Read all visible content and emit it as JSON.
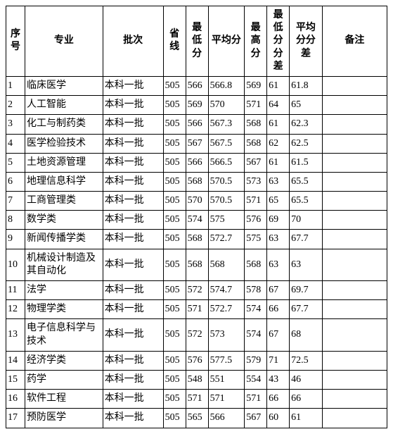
{
  "table": {
    "columns": [
      {
        "key": "seq",
        "label": "序号"
      },
      {
        "key": "major",
        "label": "专业"
      },
      {
        "key": "batch",
        "label": "批次"
      },
      {
        "key": "provline",
        "label": "省线"
      },
      {
        "key": "minscore",
        "label": "最低分"
      },
      {
        "key": "avgscore",
        "label": "平均分"
      },
      {
        "key": "maxscore",
        "label": "最高分"
      },
      {
        "key": "mindiff",
        "label": "最低分分差"
      },
      {
        "key": "avgdiff",
        "label": "平均分分差"
      },
      {
        "key": "remark",
        "label": "备注"
      }
    ],
    "rows": [
      {
        "seq": "1",
        "major": "临床医学",
        "batch": "本科一批",
        "provline": "505",
        "minscore": "566",
        "avgscore": "566.8",
        "maxscore": "569",
        "mindiff": "61",
        "avgdiff": "61.8",
        "remark": ""
      },
      {
        "seq": "2",
        "major": "人工智能",
        "batch": "本科一批",
        "provline": "505",
        "minscore": "569",
        "avgscore": "570",
        "maxscore": "571",
        "mindiff": "64",
        "avgdiff": "65",
        "remark": ""
      },
      {
        "seq": "3",
        "major": "化工与制药类",
        "batch": "本科一批",
        "provline": "505",
        "minscore": "566",
        "avgscore": "567.3",
        "maxscore": "568",
        "mindiff": "61",
        "avgdiff": "62.3",
        "remark": ""
      },
      {
        "seq": "4",
        "major": "医学检验技术",
        "batch": "本科一批",
        "provline": "505",
        "minscore": "567",
        "avgscore": "567.5",
        "maxscore": "568",
        "mindiff": "62",
        "avgdiff": "62.5",
        "remark": ""
      },
      {
        "seq": "5",
        "major": "土地资源管理",
        "batch": "本科一批",
        "provline": "505",
        "minscore": "566",
        "avgscore": "566.5",
        "maxscore": "567",
        "mindiff": "61",
        "avgdiff": "61.5",
        "remark": ""
      },
      {
        "seq": "6",
        "major": "地理信息科学",
        "batch": "本科一批",
        "provline": "505",
        "minscore": "568",
        "avgscore": "570.5",
        "maxscore": "573",
        "mindiff": "63",
        "avgdiff": "65.5",
        "remark": ""
      },
      {
        "seq": "7",
        "major": "工商管理类",
        "batch": "本科一批",
        "provline": "505",
        "minscore": "570",
        "avgscore": "570.5",
        "maxscore": "571",
        "mindiff": "65",
        "avgdiff": "65.5",
        "remark": ""
      },
      {
        "seq": "8",
        "major": "数学类",
        "batch": "本科一批",
        "provline": "505",
        "minscore": "574",
        "avgscore": "575",
        "maxscore": "576",
        "mindiff": "69",
        "avgdiff": "70",
        "remark": ""
      },
      {
        "seq": "9",
        "major": "新闻传播学类",
        "batch": "本科一批",
        "provline": "505",
        "minscore": "568",
        "avgscore": "572.7",
        "maxscore": "575",
        "mindiff": "63",
        "avgdiff": "67.7",
        "remark": ""
      },
      {
        "seq": "10",
        "major": "机械设计制造及其自动化",
        "batch": "本科一批",
        "provline": "505",
        "minscore": "568",
        "avgscore": "568",
        "maxscore": "568",
        "mindiff": "63",
        "avgdiff": "63",
        "remark": ""
      },
      {
        "seq": "11",
        "major": "法学",
        "batch": "本科一批",
        "provline": "505",
        "minscore": "572",
        "avgscore": "574.7",
        "maxscore": "578",
        "mindiff": "67",
        "avgdiff": "69.7",
        "remark": ""
      },
      {
        "seq": "12",
        "major": "物理学类",
        "batch": "本科一批",
        "provline": "505",
        "minscore": "571",
        "avgscore": "572.7",
        "maxscore": "574",
        "mindiff": "66",
        "avgdiff": "67.7",
        "remark": ""
      },
      {
        "seq": "13",
        "major": "电子信息科学与技术",
        "batch": "本科一批",
        "provline": "505",
        "minscore": "572",
        "avgscore": "573",
        "maxscore": "574",
        "mindiff": "67",
        "avgdiff": "68",
        "remark": ""
      },
      {
        "seq": "14",
        "major": "经济学类",
        "batch": "本科一批",
        "provline": "505",
        "minscore": "576",
        "avgscore": "577.5",
        "maxscore": "579",
        "mindiff": "71",
        "avgdiff": "72.5",
        "remark": ""
      },
      {
        "seq": "15",
        "major": "药学",
        "batch": "本科一批",
        "provline": "505",
        "minscore": "548",
        "avgscore": "551",
        "maxscore": "554",
        "mindiff": "43",
        "avgdiff": "46",
        "remark": ""
      },
      {
        "seq": "16",
        "major": "软件工程",
        "batch": "本科一批",
        "provline": "505",
        "minscore": "571",
        "avgscore": "571",
        "maxscore": "571",
        "mindiff": "66",
        "avgdiff": "66",
        "remark": ""
      },
      {
        "seq": "17",
        "major": "预防医学",
        "batch": "本科一批",
        "provline": "505",
        "minscore": "565",
        "avgscore": "566",
        "maxscore": "567",
        "mindiff": "60",
        "avgdiff": "61",
        "remark": ""
      }
    ]
  }
}
